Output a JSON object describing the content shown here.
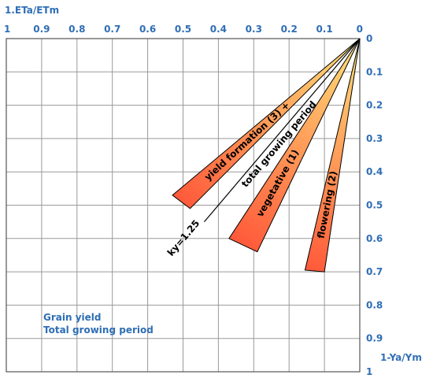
{
  "chart_data": {
    "type": "line",
    "x_axis": {
      "label": "1.ETa/ETm",
      "ticks": [
        1,
        0.9,
        0.8,
        0.7,
        0.6,
        0.5,
        0.4,
        0.3,
        0.2,
        0.1,
        0
      ],
      "tick_labels": [
        "1",
        "0.9",
        "0.8",
        "0.7",
        "0.6",
        "0.5",
        "0.4",
        "0.3",
        "0.2",
        "0.1",
        "0"
      ],
      "range": [
        0,
        1
      ],
      "reversed": true,
      "position": "top"
    },
    "y_axis": {
      "label": "1-Ya/Ym",
      "ticks": [
        0,
        0.1,
        0.2,
        0.3,
        0.4,
        0.5,
        0.6,
        0.7,
        0.8,
        0.9,
        1
      ],
      "tick_labels": [
        "0",
        "0.1",
        "0.2",
        "0.3",
        "0.4",
        "0.5",
        "0.6",
        "0.7",
        "0.8",
        "0.9",
        "1"
      ],
      "range": [
        0,
        1
      ],
      "reversed": true,
      "position": "right"
    },
    "grid": true,
    "bands": [
      {
        "label": "yield formation (3) +",
        "origin": [
          0,
          0
        ],
        "side1_end": [
          0.48,
          0.51
        ],
        "side2_end": [
          0.53,
          0.47
        ],
        "gradient": [
          "#ffe27a",
          "#ff5a3a"
        ]
      },
      {
        "label": "vegetative (1)",
        "origin": [
          0,
          0
        ],
        "side1_end": [
          0.29,
          0.64
        ],
        "side2_end": [
          0.37,
          0.6
        ],
        "gradient": [
          "#ffe27a",
          "#ff5a3a"
        ]
      },
      {
        "label": "flowering (2)",
        "origin": [
          0,
          0
        ],
        "side1_end": [
          0.1,
          0.7
        ],
        "side2_end": [
          0.155,
          0.695
        ],
        "gradient": [
          "#ffe27a",
          "#ff5a3a"
        ]
      }
    ],
    "lines": [
      {
        "label": "total growing period",
        "origin": [
          0,
          0
        ],
        "end": [
          0.44,
          0.55
        ]
      }
    ],
    "annotations": {
      "ky": "ky=1.25",
      "note_line1": "Grain yield",
      "note_line2": "Total growing period"
    }
  },
  "colors": {
    "axis_text": "#2f6eb5",
    "grid": "#9a9a9a",
    "border": "#555555",
    "band_light": "#ffe27a",
    "band_dark": "#ff5a3a"
  }
}
